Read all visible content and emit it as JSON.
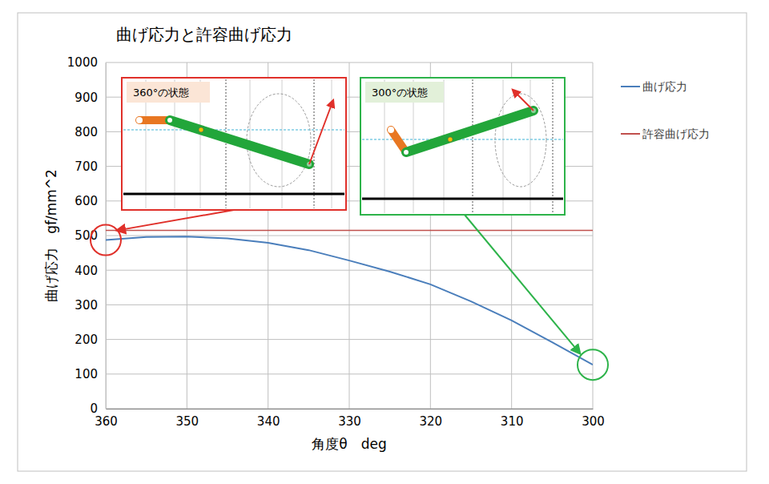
{
  "chart_data": {
    "type": "line",
    "title": "曲げ応力と許容曲げ応力",
    "x_label": "角度θ　deg",
    "y_label": "曲げ応力　gf/mm^2",
    "x": [
      360,
      355,
      350,
      345,
      340,
      335,
      330,
      325,
      320,
      315,
      310,
      305,
      300
    ],
    "series": [
      {
        "name": "曲げ応力",
        "color": "#4a7ebb",
        "values": [
          487,
          496,
          497,
          492,
          479,
          458,
          428,
          396,
          359,
          310,
          255,
          192,
          127
        ]
      },
      {
        "name": "許容曲げ応力",
        "color": "#c0504d",
        "values": [
          515,
          515,
          515,
          515,
          515,
          515,
          515,
          515,
          515,
          515,
          515,
          515,
          515
        ]
      }
    ],
    "xlim": [
      360,
      300
    ],
    "xticks": [
      360,
      350,
      340,
      330,
      320,
      310,
      300
    ],
    "ylim": [
      0,
      1000
    ],
    "yticks": [
      0,
      100,
      200,
      300,
      400,
      500,
      600,
      700,
      800,
      900,
      1000
    ],
    "grid": true,
    "legend": "right",
    "annotations": [
      {
        "text": "360°の状態",
        "x": 360,
        "color": "#e0302a"
      },
      {
        "text": "300°の状態",
        "x": 300,
        "color": "#2db34a"
      }
    ]
  }
}
